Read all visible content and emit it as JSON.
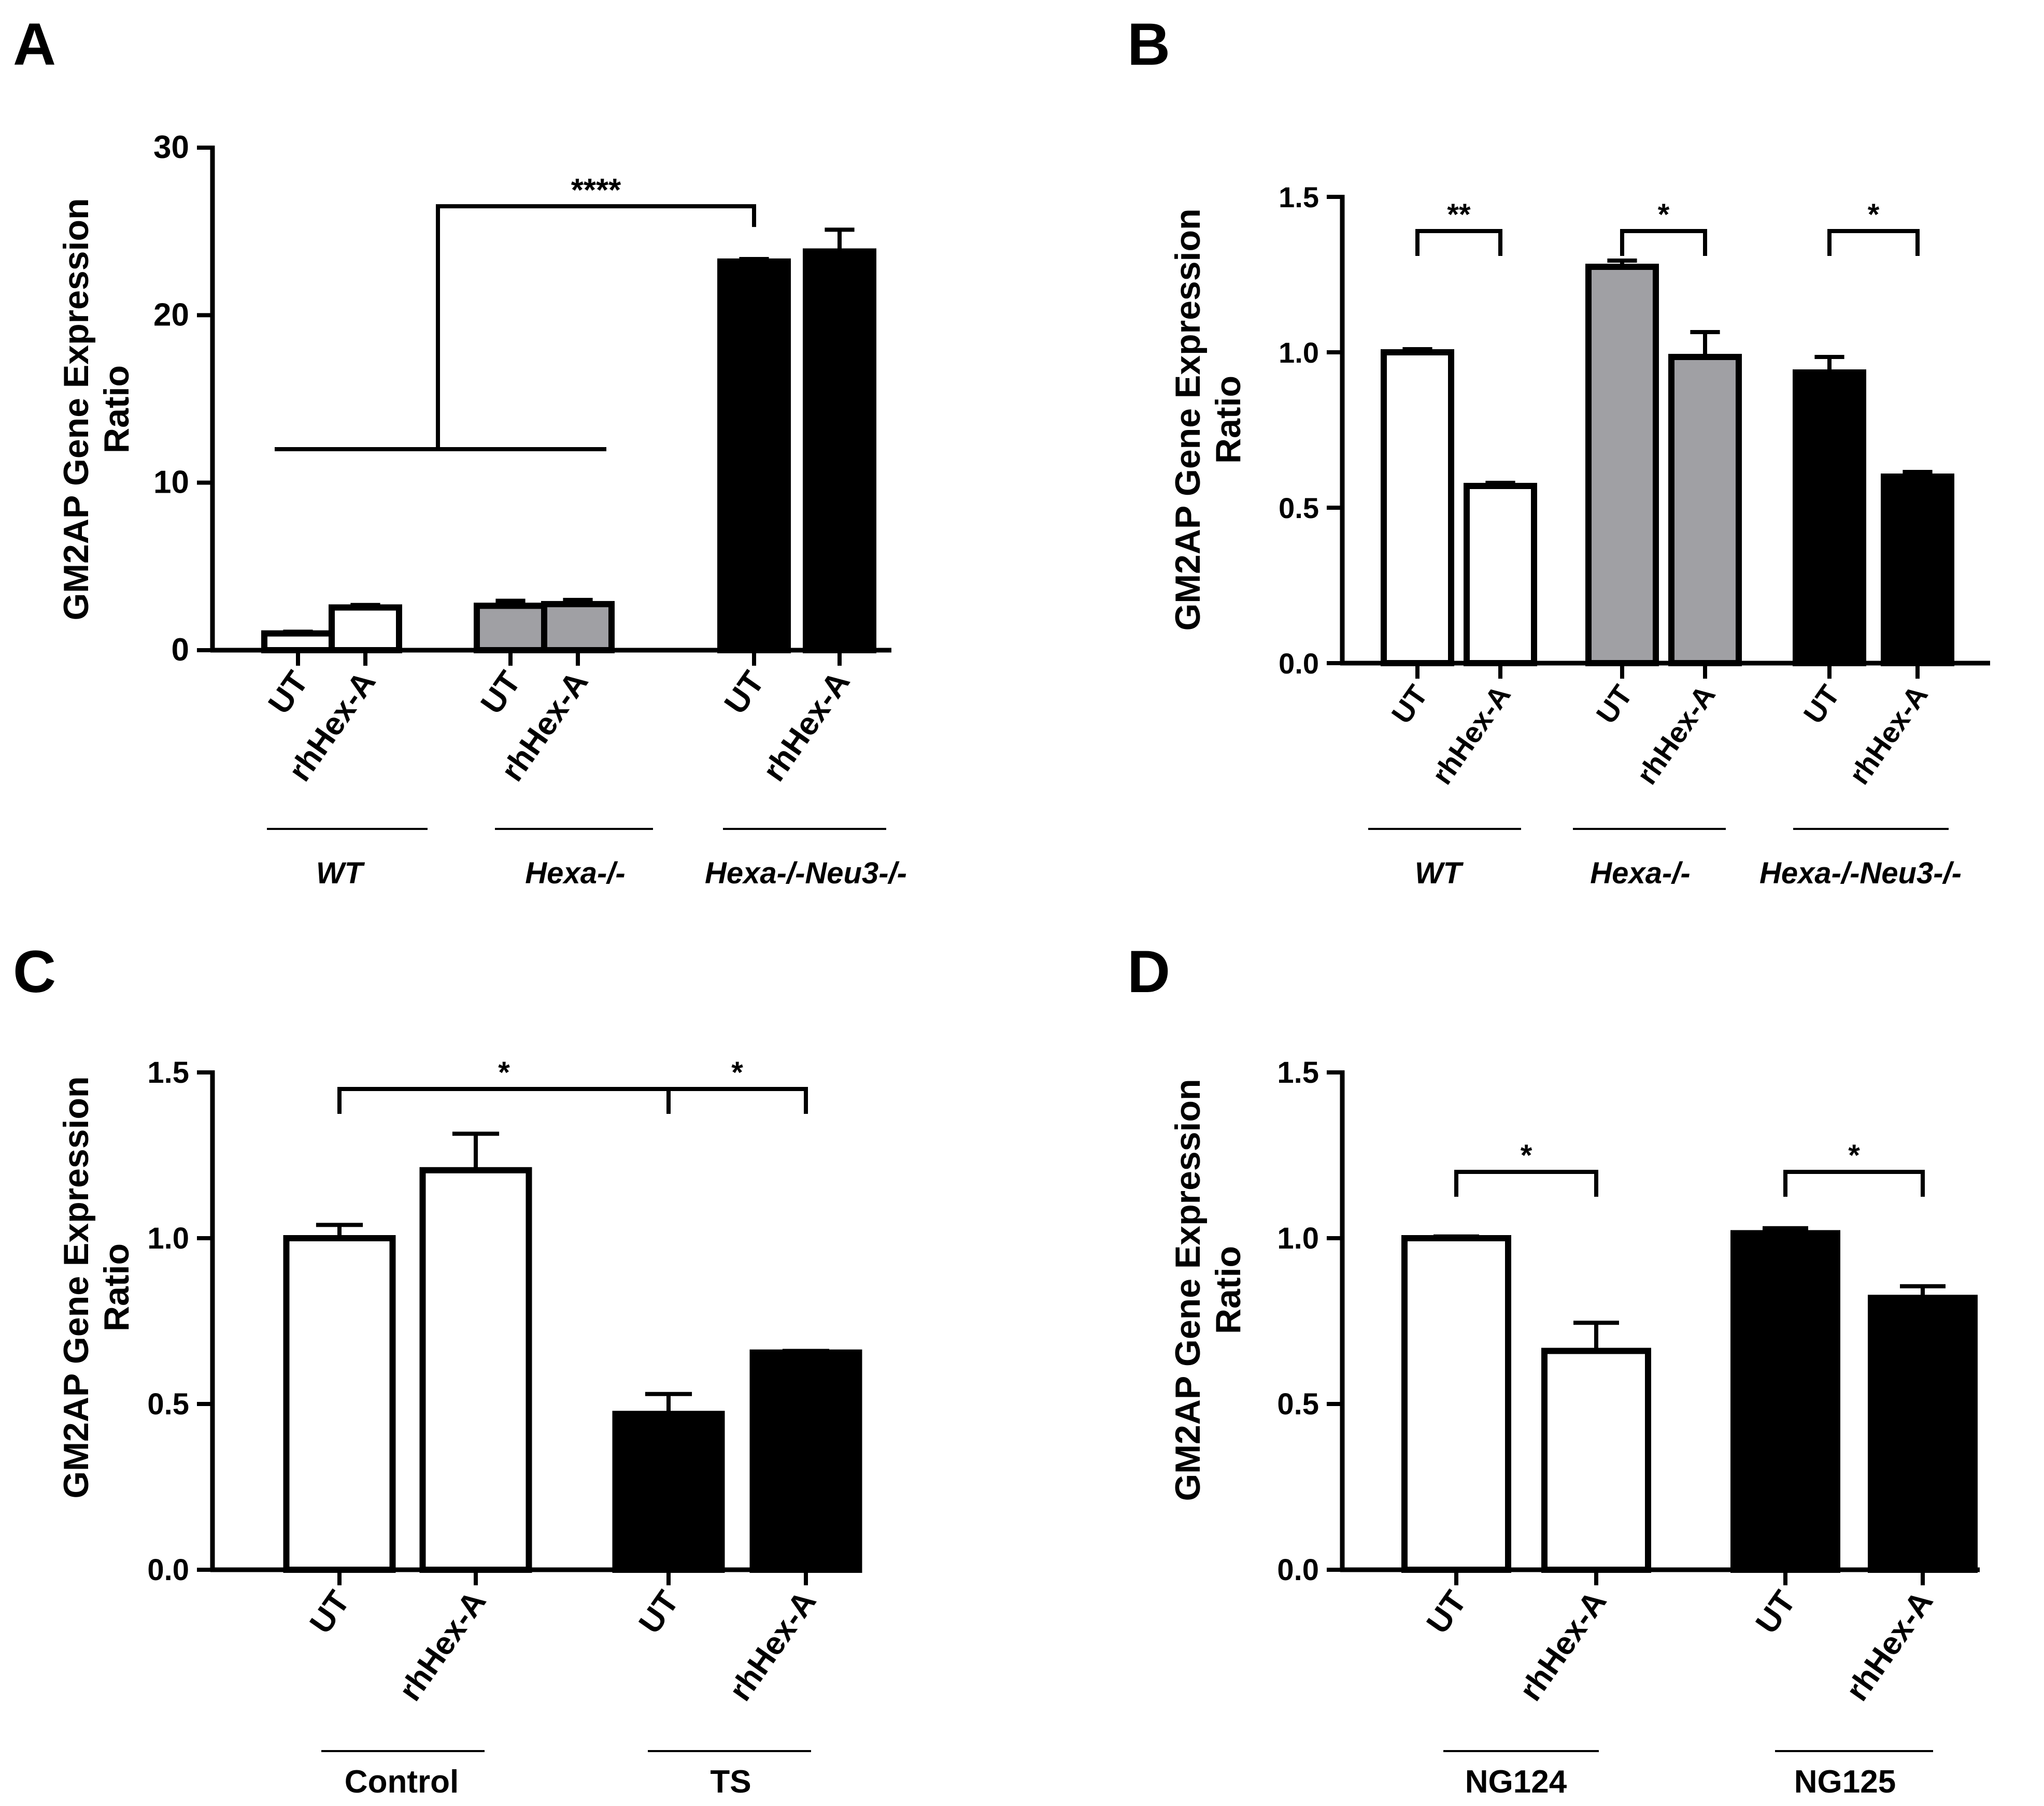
{
  "chart_data": [
    {
      "panel": "A",
      "type": "bar",
      "ylabel": [
        "GM2AP Gene Expression",
        "Ratio"
      ],
      "ylim": [
        0,
        30
      ],
      "yticks": [
        0,
        10,
        20,
        30
      ],
      "ytick_labels": [
        "0",
        "10",
        "20",
        "30"
      ],
      "bars": [
        {
          "category": "UT",
          "group": "WT",
          "value": 1.0,
          "error": 0.1,
          "fill": "white"
        },
        {
          "category": "rhHex-A",
          "group": "WT",
          "value": 2.55,
          "error": 0.15,
          "fill": "white"
        },
        {
          "category": "UT",
          "group": "Hexa-/-",
          "value": 2.65,
          "error": 0.3,
          "fill": "gray"
        },
        {
          "category": "rhHex-A",
          "group": "Hexa-/-",
          "value": 2.75,
          "error": 0.25,
          "fill": "gray"
        },
        {
          "category": "UT",
          "group": "Hexa-/-Neu3-/-",
          "value": 23.2,
          "error": 0.15,
          "fill": "black"
        },
        {
          "category": "rhHex-A",
          "group": "Hexa-/-Neu3-/-",
          "value": 23.8,
          "error": 1.3,
          "fill": "black"
        }
      ],
      "groups": [
        "WT",
        "Hexa-/-",
        "Hexa-/-Neu3-/-"
      ],
      "groups_italic": true,
      "significance": [
        {
          "label": "****",
          "type": "group_vs_bar",
          "span": [
            0,
            3
          ],
          "to": 4,
          "stem_y": 12,
          "bracket_y": 26.5
        }
      ]
    },
    {
      "panel": "B",
      "type": "bar",
      "ylabel": [
        "GM2AP Gene Expression",
        "Ratio"
      ],
      "ylim": [
        0,
        1.5
      ],
      "yticks": [
        0,
        0.5,
        1.0,
        1.5
      ],
      "ytick_labels": [
        "0.0",
        "0.5",
        "1.0",
        "1.5"
      ],
      "bars": [
        {
          "category": "UT",
          "group": "WT",
          "value": 1.0,
          "error": 0.01,
          "fill": "white"
        },
        {
          "category": "rhHex-A",
          "group": "WT",
          "value": 0.57,
          "error": 0.01,
          "fill": "white"
        },
        {
          "category": "UT",
          "group": "Hexa-/-",
          "value": 1.275,
          "error": 0.02,
          "fill": "gray"
        },
        {
          "category": "rhHex-A",
          "group": "Hexa-/-",
          "value": 0.985,
          "error": 0.08,
          "fill": "gray"
        },
        {
          "category": "UT",
          "group": "Hexa-/-Neu3-/-",
          "value": 0.935,
          "error": 0.05,
          "fill": "black"
        },
        {
          "category": "rhHex-A",
          "group": "Hexa-/-Neu3-/-",
          "value": 0.6,
          "error": 0.015,
          "fill": "black"
        }
      ],
      "groups": [
        "WT",
        "Hexa-/-",
        "Hexa-/-Neu3-/-"
      ],
      "groups_italic": true,
      "significance": [
        {
          "label": "**",
          "a": 0,
          "b": 1,
          "y": 1.39
        },
        {
          "label": "*",
          "a": 2,
          "b": 3,
          "y": 1.39
        },
        {
          "label": "*",
          "a": 4,
          "b": 5,
          "y": 1.39
        }
      ]
    },
    {
      "panel": "C",
      "type": "bar",
      "ylabel": [
        "GM2AP Gene Expression",
        "Ratio"
      ],
      "ylim": [
        0,
        1.5
      ],
      "yticks": [
        0,
        0.5,
        1.0,
        1.5
      ],
      "ytick_labels": [
        "0.0",
        "0.5",
        "1.0",
        "1.5"
      ],
      "bars": [
        {
          "category": "UT",
          "group": "Control",
          "value": 1.0,
          "error": 0.04,
          "fill": "white"
        },
        {
          "category": "rhHex-A",
          "group": "Control",
          "value": 1.205,
          "error": 0.11,
          "fill": "white"
        },
        {
          "category": "UT",
          "group": "TS",
          "value": 0.47,
          "error": 0.06,
          "fill": "black"
        },
        {
          "category": "rhHex-A",
          "group": "TS",
          "value": 0.655,
          "error": 0.005,
          "fill": "black"
        }
      ],
      "groups": [
        "Control",
        "TS"
      ],
      "groups_italic": false,
      "significance": [
        {
          "label": "*",
          "a": 0,
          "b": 2,
          "y": 1.45
        },
        {
          "label": "*",
          "a": 2,
          "b": 3,
          "y": 1.45
        }
      ]
    },
    {
      "panel": "D",
      "type": "bar",
      "ylabel": [
        "GM2AP Gene Expression",
        "Ratio"
      ],
      "ylim": [
        0,
        1.5
      ],
      "yticks": [
        0,
        0.5,
        1.0,
        1.5
      ],
      "ytick_labels": [
        "0.0",
        "0.5",
        "1.0",
        "1.5"
      ],
      "bars": [
        {
          "category": "UT",
          "group": "NG124",
          "value": 1.0,
          "error": 0.005,
          "fill": "white"
        },
        {
          "category": "rhHex-A",
          "group": "NG124",
          "value": 0.66,
          "error": 0.085,
          "fill": "white"
        },
        {
          "category": "UT",
          "group": "NG125",
          "value": 1.015,
          "error": 0.015,
          "fill": "black"
        },
        {
          "category": "rhHex-A",
          "group": "NG125",
          "value": 0.82,
          "error": 0.035,
          "fill": "black"
        }
      ],
      "groups": [
        "NG124",
        "NG125"
      ],
      "groups_italic": false,
      "significance": [
        {
          "label": "*",
          "a": 0,
          "b": 1,
          "y": 1.2
        },
        {
          "label": "*",
          "a": 2,
          "b": 3,
          "y": 1.2
        }
      ]
    }
  ],
  "colors": {
    "white": "#ffffff",
    "gray": "#a0a0a4",
    "black": "#000000",
    "stroke": "#000000"
  }
}
